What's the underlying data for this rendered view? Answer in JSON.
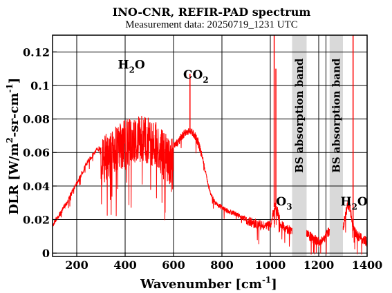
{
  "chart_data": {
    "type": "line",
    "title": "INO-CNR, REFIR-PAD spectrum",
    "subtitle": "Measurement data: 20250719_1231 UTC",
    "xlabel": "Wavenumber [cm",
    "xlabel_sup": "-1",
    "xlabel_end": "]",
    "ylabel": "DLR [W/m",
    "ylabel_sup1": "2",
    "ylabel_mid": "-sr-cm",
    "ylabel_sup2": "-1",
    "ylabel_end": "]",
    "xlim": [
      100,
      1400
    ],
    "ylim": [
      -0.002,
      0.13
    ],
    "grid": true,
    "x_ticks": [
      200,
      400,
      600,
      800,
      1000,
      1200,
      1400
    ],
    "y_ticks": [
      0,
      0.02,
      0.04,
      0.06,
      0.08,
      0.1,
      0.12
    ],
    "line_color": "#ff0000",
    "band_color": "#d9d9d9",
    "series": [
      {
        "values_x": [
          100,
          110,
          120,
          130,
          140,
          150,
          160,
          170,
          180,
          190,
          200,
          210,
          220,
          230,
          240,
          250,
          260,
          270,
          280,
          290,
          300,
          310,
          320,
          330,
          340,
          350,
          360,
          370,
          380,
          390,
          400,
          420,
          440,
          460,
          480,
          500,
          520,
          540,
          560,
          580,
          600,
          610,
          620,
          630,
          640,
          650,
          660,
          670,
          680,
          690,
          700,
          710,
          720,
          730,
          740,
          750,
          760,
          770,
          780,
          790,
          800,
          820,
          840,
          860,
          880,
          900,
          920,
          940,
          960,
          980,
          1000,
          1010,
          1020,
          1030,
          1040,
          1050,
          1060,
          1070,
          1080,
          1160,
          1170,
          1180,
          1190,
          1200,
          1210,
          1220,
          1230,
          1240,
          1300,
          1310,
          1320,
          1330,
          1340,
          1350,
          1360,
          1370,
          1380,
          1390,
          1400
        ],
        "values_y": [
          0.017,
          0.02,
          0.022,
          0.024,
          0.026,
          0.029,
          0.031,
          0.034,
          0.037,
          0.04,
          0.043,
          0.045,
          0.048,
          0.051,
          0.054,
          0.056,
          0.058,
          0.06,
          0.062,
          0.063,
          0.064,
          0.065,
          0.067,
          0.068,
          0.069,
          0.07,
          0.071,
          0.072,
          0.073,
          0.074,
          0.075,
          0.076,
          0.077,
          0.077,
          0.078,
          0.077,
          0.075,
          0.072,
          0.068,
          0.066,
          0.065,
          0.066,
          0.068,
          0.07,
          0.072,
          0.073,
          0.074,
          0.074,
          0.073,
          0.071,
          0.068,
          0.063,
          0.058,
          0.05,
          0.044,
          0.038,
          0.034,
          0.031,
          0.03,
          0.029,
          0.028,
          0.026,
          0.025,
          0.024,
          0.022,
          0.021,
          0.02,
          0.019,
          0.018,
          0.017,
          0.018,
          0.024,
          0.03,
          0.026,
          0.02,
          0.018,
          0.017,
          0.016,
          0.015,
          0.012,
          0.011,
          0.01,
          0.009,
          0.008,
          0.009,
          0.01,
          0.012,
          0.014,
          0.016,
          0.024,
          0.03,
          0.028,
          0.018,
          0.014,
          0.012,
          0.011,
          0.01,
          0.009,
          0.008
        ]
      }
    ],
    "spikes": [
      {
        "x": 668,
        "y": 0.107
      },
      {
        "x": 1016,
        "y": 0.132
      },
      {
        "x": 1023,
        "y": 0.11
      },
      {
        "x": 1342,
        "y": 0.132
      }
    ],
    "absorption_bands": [
      {
        "label": "BS absorption band",
        "x_start": 1090,
        "x_end": 1150
      },
      {
        "label": "BS absorption band",
        "x_start": 1245,
        "x_end": 1300
      }
    ],
    "annotations": [
      {
        "base": "H",
        "sub": "2",
        "end": "O",
        "x": 370,
        "y": 0.11
      },
      {
        "base": "CO",
        "sub": "2",
        "end": "",
        "x": 640,
        "y": 0.104
      },
      {
        "base": "O",
        "sub": "3",
        "end": "",
        "x": 1024,
        "y": 0.0285
      },
      {
        "base": "H",
        "sub": "2",
        "end": "O",
        "x": 1290,
        "y": 0.0285
      }
    ],
    "vlines_x": [
      1000,
      1230
    ]
  }
}
